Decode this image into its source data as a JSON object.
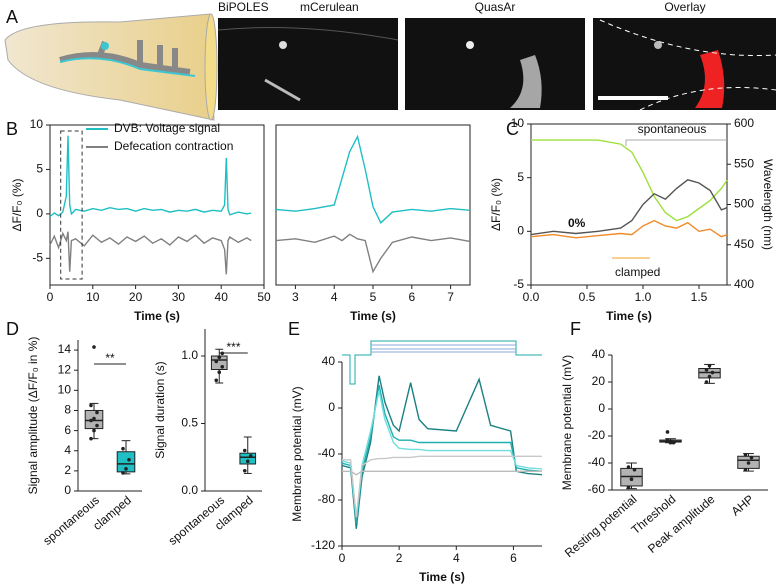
{
  "figure": {
    "panel_labels": [
      "A",
      "B",
      "C",
      "D",
      "E",
      "F"
    ],
    "image_titles": [
      "BiPOLES",
      "mCerulean",
      "QuasAr",
      "Overlay"
    ]
  },
  "chart_data": [
    {
      "type": "line",
      "xlabel": "Time (s)",
      "ylabel": "ΔF/F₀ (%)",
      "xlim": [
        0,
        50
      ],
      "xticks": [
        0,
        10,
        20,
        30,
        40,
        50
      ],
      "ylim": [
        -8,
        10
      ],
      "yticks": [
        -5,
        0,
        5,
        10
      ],
      "legend": "upper right",
      "x": [
        0,
        1,
        2,
        3,
        3.8,
        4.2,
        4.6,
        5,
        6,
        8,
        10,
        12,
        14,
        16,
        18,
        20,
        22,
        24,
        26,
        28,
        30,
        32,
        34,
        36,
        38,
        40,
        40.8,
        41.2,
        41.6,
        42,
        44,
        46,
        47
      ],
      "series": [
        {
          "name": "DVB: Voltage signal",
          "color": "#1fbfc4",
          "values": [
            -0.3,
            0.1,
            -0.2,
            0.2,
            2,
            8.8,
            1,
            0,
            0.5,
            0.3,
            0.6,
            0.4,
            0.7,
            0.5,
            0.6,
            0.3,
            0.6,
            0.4,
            0.5,
            0.2,
            0.4,
            0.3,
            0.5,
            0.2,
            0.4,
            0.3,
            1,
            6.3,
            0.5,
            -0.1,
            0.2,
            0,
            0.1
          ]
        },
        {
          "name": "Defecation contraction",
          "color": "#808080",
          "values": [
            -3.5,
            -2.5,
            -3.8,
            -2.2,
            -3,
            -2,
            -6.5,
            -3,
            -2.8,
            -3.6,
            -2.4,
            -3.2,
            -2.7,
            -3.4,
            -2.6,
            -3.1,
            -2.5,
            -3.3,
            -2.8,
            -3.5,
            -2.6,
            -3.1,
            -2.4,
            -3.3,
            -2.7,
            -3,
            -4,
            -6.8,
            -3,
            -2.6,
            -3.2,
            -2.7,
            -3
          ]
        }
      ]
    },
    {
      "type": "line",
      "xlabel": "Time (s)",
      "xlim": [
        2.5,
        7.5
      ],
      "xticks": [
        3,
        4,
        5,
        6,
        7
      ],
      "ylim": [
        -8,
        10
      ],
      "x": [
        2.5,
        3,
        3.5,
        4,
        4.2,
        4.4,
        4.6,
        4.8,
        5,
        5.2,
        5.5,
        6,
        6.5,
        7,
        7.5
      ],
      "series": [
        {
          "color": "#1fbfc4",
          "values": [
            0.5,
            0.3,
            0.6,
            1,
            4,
            7,
            8.7,
            5,
            0.8,
            -1,
            0.2,
            0.5,
            0.3,
            0.6,
            0.4
          ]
        },
        {
          "color": "#808080",
          "values": [
            -3,
            -2.8,
            -3.2,
            -2.5,
            -3,
            -2.3,
            -2.8,
            -3,
            -6.5,
            -5,
            -3.2,
            -2.6,
            -3,
            -2.7,
            -3.1
          ]
        }
      ]
    },
    {
      "type": "line",
      "xlabel": "Time (s)",
      "ylabel": "ΔF/F₀ (%)",
      "y2label": "Wavelength (nm)",
      "xlim": [
        0,
        1.75
      ],
      "xticks": [
        {
          "value": 0,
          "label": "0.0"
        },
        {
          "value": 0.5,
          "label": "0.5"
        },
        {
          "value": 1,
          "label": "1.0"
        },
        {
          "value": 1.5,
          "label": "1.5"
        }
      ],
      "ylim": [
        -5,
        10
      ],
      "yticks": [
        -5,
        0,
        5,
        10
      ],
      "y2lim": [
        400,
        600
      ],
      "y2ticks": [
        400,
        450,
        500,
        550,
        600
      ],
      "annotations": [
        "0%"
      ],
      "x": [
        0,
        0.2,
        0.4,
        0.6,
        0.8,
        0.9,
        1,
        1.1,
        1.2,
        1.3,
        1.4,
        1.5,
        1.6,
        1.7,
        1.75
      ],
      "series": [
        {
          "color": "#9ce03c",
          "axis": "y2",
          "values": [
            580,
            580,
            580,
            580,
            575,
            565,
            540,
            510,
            490,
            480,
            485,
            495,
            505,
            520,
            530
          ]
        },
        {
          "name": "spontaneous",
          "color": "#555555",
          "values": [
            -0.3,
            0,
            -0.2,
            0,
            0.3,
            1,
            2.5,
            3.5,
            3,
            4,
            4.8,
            4.5,
            3.8,
            2,
            2.2
          ]
        },
        {
          "name": "clamped",
          "color": "#f08a2a",
          "values": [
            -0.5,
            -0.3,
            -0.6,
            -0.4,
            -0.2,
            -0.3,
            0.5,
            1,
            0.5,
            0.3,
            0.8,
            0,
            0.2,
            -0.5,
            -0.3
          ]
        }
      ]
    },
    {
      "type": "box",
      "ylabel": "Signal amplitude (ΔF/F₀ in %)",
      "categories": [
        "spontaneous",
        "clamped"
      ],
      "colors": [
        "#b3b3b3",
        "#1fbfc4"
      ],
      "ylim": [
        0,
        15
      ],
      "yticks": [
        0,
        2,
        4,
        6,
        8,
        10,
        12,
        14
      ],
      "annotations": [
        "**"
      ],
      "boxes": [
        {
          "min": 5.2,
          "q1": 6.2,
          "median": 7,
          "q3": 8,
          "max": 8.7,
          "points": [
            5.2,
            6,
            6.5,
            7,
            7.2,
            7.8,
            8.5,
            14.3
          ]
        },
        {
          "min": 1.7,
          "q1": 1.9,
          "median": 2.7,
          "q3": 3.9,
          "max": 5,
          "points": [
            1.8,
            2.2,
            3.1,
            4.2
          ]
        }
      ]
    },
    {
      "type": "box",
      "ylabel": "Signal duration (s)",
      "categories": [
        "spontaneous",
        "clamped"
      ],
      "colors": [
        "#b3b3b3",
        "#1fbfc4"
      ],
      "ylim": [
        0,
        1.2
      ],
      "yticks": [
        {
          "value": 0,
          "label": "0.0"
        },
        {
          "value": 0.5,
          "label": "0.5"
        },
        {
          "value": 1,
          "label": "1.0"
        }
      ],
      "annotations": [
        "***"
      ],
      "boxes": [
        {
          "min": 0.8,
          "q1": 0.9,
          "median": 0.97,
          "q3": 1,
          "max": 1.05,
          "points": [
            0.82,
            0.88,
            0.92,
            0.96,
            0.99,
            1.02
          ]
        },
        {
          "min": 0.13,
          "q1": 0.2,
          "median": 0.25,
          "q3": 0.28,
          "max": 0.4,
          "points": [
            0.15,
            0.22,
            0.26,
            0.3
          ]
        }
      ]
    },
    {
      "type": "line",
      "xlabel": "Time (s)",
      "ylabel": "Membrane potential (mV)",
      "xlim": [
        0,
        7
      ],
      "xticks": [
        0,
        2,
        4,
        6
      ],
      "ylim": [
        -120,
        40
      ],
      "yticks": [
        -120,
        -80,
        -40,
        0,
        40
      ],
      "x": [
        0,
        0.3,
        0.5,
        0.7,
        1,
        1.3,
        1.5,
        1.8,
        2,
        2.4,
        2.7,
        3,
        4,
        4.8,
        5.2,
        5.9,
        6.1,
        6.5,
        7
      ],
      "series": [
        {
          "color": "#1a8080",
          "values": [
            -50,
            -52,
            -105,
            -60,
            -30,
            28,
            5,
            -15,
            -20,
            22,
            -10,
            -18,
            -20,
            25,
            -15,
            -20,
            -55,
            -57,
            -58
          ]
        },
        {
          "color": "#20b0b0",
          "values": [
            -48,
            -50,
            -100,
            -55,
            -25,
            20,
            -5,
            -25,
            -28,
            -28,
            -30,
            -30,
            -30,
            -30,
            -30,
            -30,
            -52,
            -54,
            -55
          ]
        },
        {
          "color": "#70dede",
          "values": [
            -46,
            -48,
            -95,
            -50,
            -20,
            15,
            -10,
            -30,
            -35,
            -36,
            -36,
            -37,
            -37,
            -37,
            -37,
            -37,
            -50,
            -52,
            -53
          ]
        },
        {
          "color": "#c8c8c8",
          "values": [
            -45,
            -45,
            -95,
            -50,
            -45,
            -44,
            -44,
            -43,
            -43,
            -43,
            -42,
            -42,
            -42,
            -42,
            -42,
            -42,
            -42,
            -42,
            -42
          ]
        },
        {
          "color": "#bbbbbb",
          "values": [
            -55,
            -55,
            -58,
            -55,
            -55,
            -55,
            -55,
            -55,
            -55,
            -55,
            -55,
            -55,
            -55,
            -55,
            -55,
            -55,
            -55,
            -55,
            -55
          ]
        }
      ]
    },
    {
      "type": "box",
      "ylabel": "Membrane potential (mV)",
      "categories": [
        "Resting potential",
        "Threshold",
        "Peak amplitude",
        "AHP"
      ],
      "colors": [
        "#b3b3b3",
        "#b3b3b3",
        "#b3b3b3",
        "#b3b3b3"
      ],
      "ylim": [
        -60,
        40
      ],
      "yticks": [
        -60,
        -40,
        -20,
        0,
        20,
        40
      ],
      "boxes": [
        {
          "min": -59,
          "q1": -57,
          "median": -50,
          "q3": -44,
          "max": -40,
          "points": [
            -58,
            -52,
            -45,
            -43
          ]
        },
        {
          "min": -25,
          "q1": -24.5,
          "median": -24,
          "q3": -23,
          "max": -22,
          "points": [
            -17,
            -24,
            -25,
            -23,
            -25
          ]
        },
        {
          "min": 19,
          "q1": 23,
          "median": 27,
          "q3": 30,
          "max": 33,
          "points": [
            20,
            24,
            27,
            29,
            32
          ]
        },
        {
          "min": -46,
          "q1": -44,
          "median": -38,
          "q3": -35,
          "max": -33,
          "points": [
            -45,
            -40,
            -36,
            -34
          ]
        }
      ]
    }
  ]
}
